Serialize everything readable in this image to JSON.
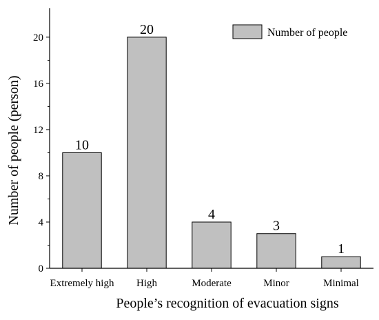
{
  "chart_data": {
    "type": "bar",
    "categories": [
      "Extremely high",
      "High",
      "Moderate",
      "Minor",
      "Minimal"
    ],
    "series": [
      {
        "name": "Number of people",
        "values": [
          10,
          20,
          4,
          3,
          1
        ]
      }
    ],
    "data_labels": [
      "10",
      "20",
      "4",
      "3",
      "1"
    ],
    "xlabel": "People’s recognition of evacuation signs",
    "ylabel": "Number of people (person)",
    "ylim": [
      0,
      22.5
    ],
    "yticks": [
      0,
      4,
      8,
      12,
      16,
      20
    ],
    "grid": false,
    "legend_position": "top-right",
    "colors": {
      "bar_fill": "#c0c0c0",
      "bar_stroke": "#000000",
      "axis": "#000000"
    }
  }
}
